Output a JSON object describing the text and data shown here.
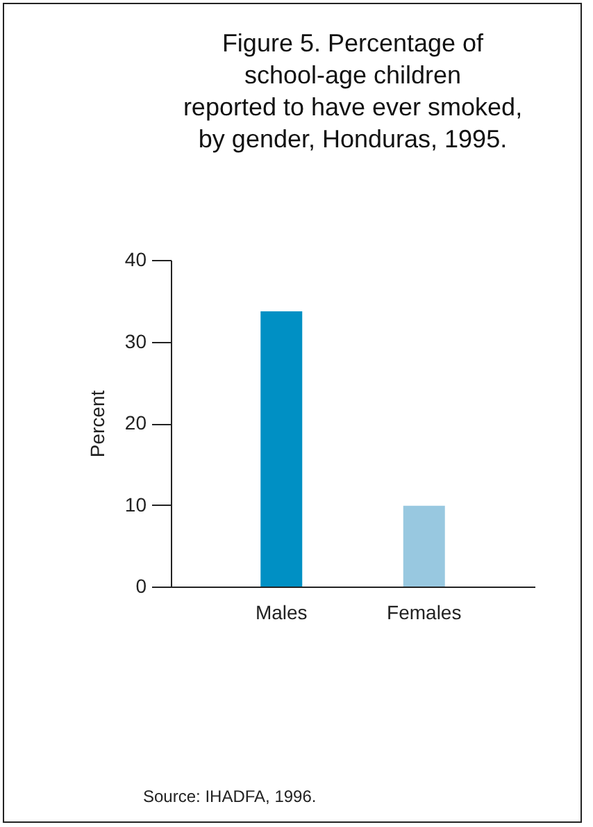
{
  "chart_data": {
    "type": "bar",
    "title": "Figure 5. Percentage of\nschool-age children\nreported to have ever smoked,\nby gender, Honduras, 1995.",
    "ylabel": "Percent",
    "categories": [
      "Males",
      "Females"
    ],
    "values": [
      33.7,
      9.9
    ],
    "colors": [
      "#0090c4",
      "#98c8e0"
    ],
    "ylim": [
      0,
      40
    ],
    "yticks": [
      0,
      10,
      20,
      30,
      40
    ],
    "annotations": [
      "Source: IHADFA, 1996."
    ]
  }
}
